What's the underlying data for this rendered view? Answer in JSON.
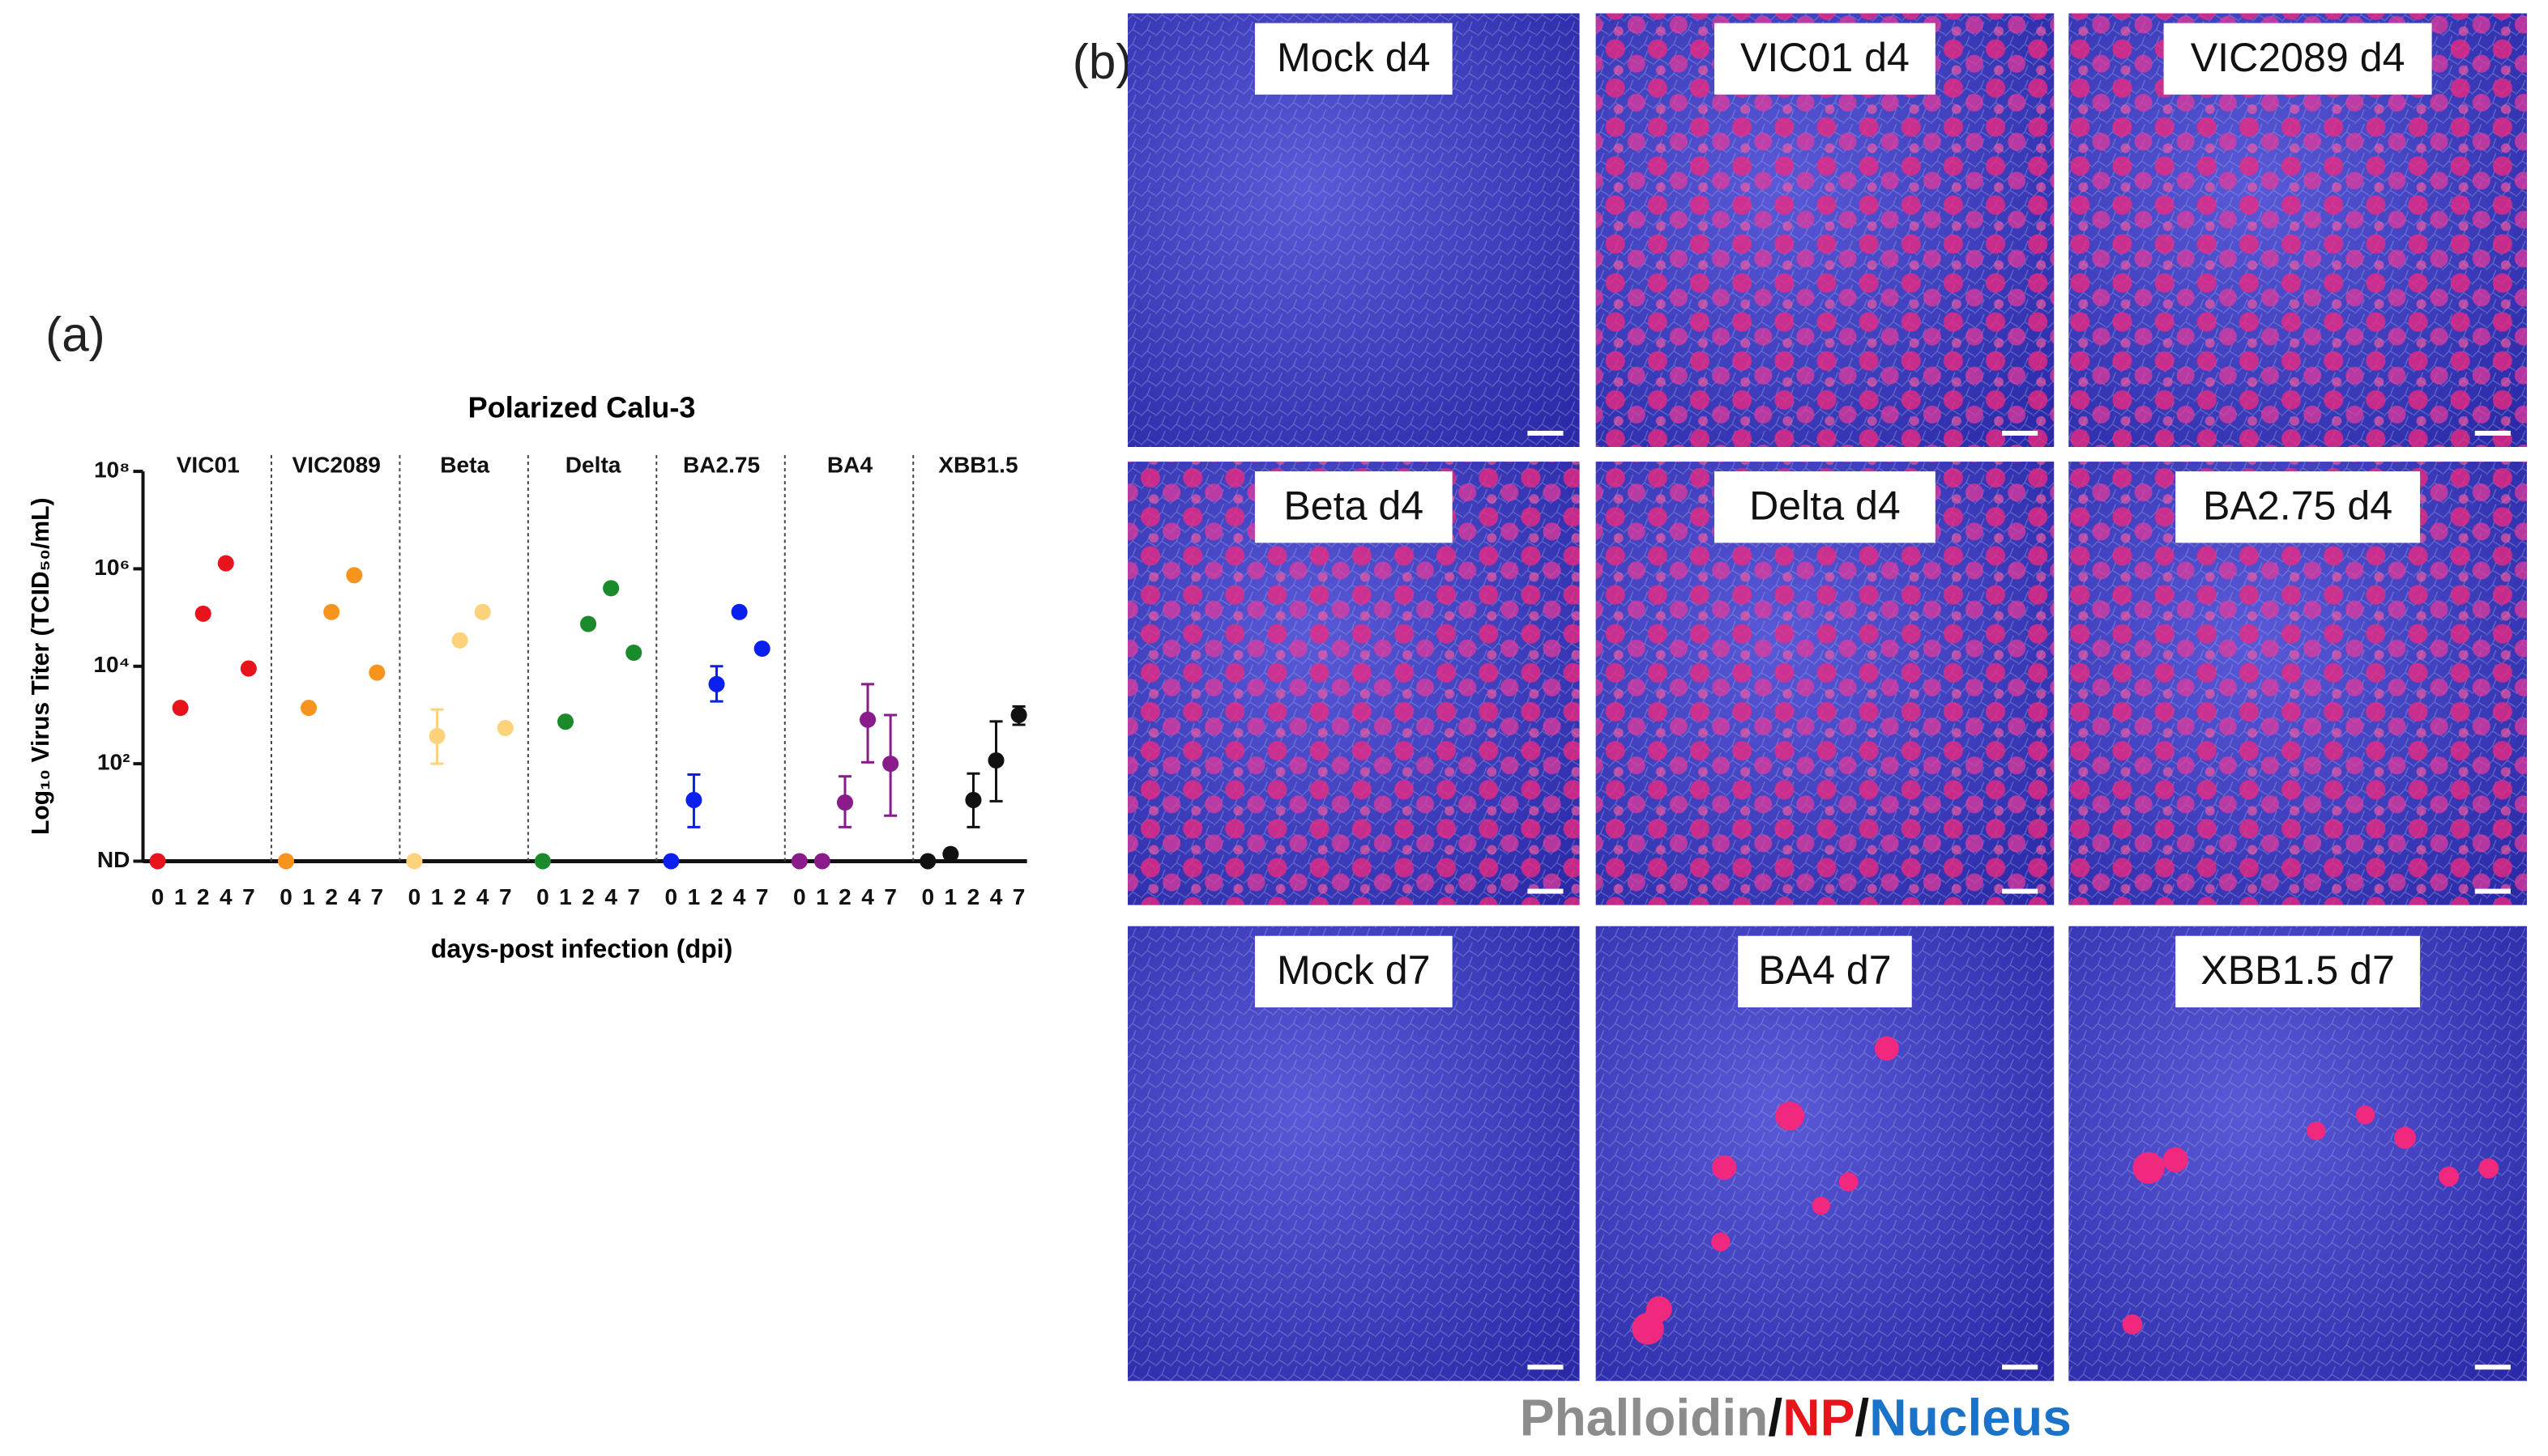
{
  "panel_labels": {
    "a": "(a)",
    "b": "(b)"
  },
  "chart_data": {
    "type": "dot",
    "title": "Polarized Calu-3",
    "y_label": "Log₁₀ Virus Titer (TCID₅₀/mL)",
    "x_label": "days-post infection (dpi)",
    "log_scale": true,
    "categories": [
      "0",
      "1",
      "2",
      "4",
      "7"
    ],
    "ylim": [
      1,
      100000000
    ],
    "yticks": [
      {
        "value": 1,
        "label": "ND"
      },
      {
        "value": 100,
        "label": "10²"
      },
      {
        "value": 10000,
        "label": "10⁴"
      },
      {
        "value": 1000000,
        "label": "10⁶"
      },
      {
        "value": 100000000,
        "label": "10⁸"
      }
    ],
    "series": [
      {
        "name": "VIC01",
        "color": "#e8141c",
        "values": [
          1,
          1400,
          120000,
          1300000,
          9000
        ],
        "lower": [
          null,
          null,
          null,
          null,
          null
        ],
        "upper": [
          null,
          null,
          null,
          null,
          null
        ]
      },
      {
        "name": "VIC2089",
        "color": "#f7941d",
        "values": [
          1,
          1400,
          130000,
          740000,
          7400
        ],
        "lower": [
          null,
          null,
          null,
          null,
          null
        ],
        "upper": [
          null,
          null,
          null,
          null,
          null
        ]
      },
      {
        "name": "Beta",
        "color": "#fcd27a",
        "values": [
          1,
          370,
          34000,
          130000,
          540
        ],
        "lower": [
          null,
          100,
          null,
          null,
          null
        ],
        "upper": [
          null,
          1300,
          null,
          null,
          null
        ]
      },
      {
        "name": "Delta",
        "color": "#1b8a2a",
        "values": [
          1,
          730,
          74000,
          400000,
          19000
        ],
        "lower": [
          null,
          null,
          null,
          null,
          null
        ],
        "upper": [
          null,
          null,
          null,
          null,
          null
        ]
      },
      {
        "name": "BA2.75",
        "color": "#0a1ff0",
        "values": [
          1,
          18,
          4300,
          130000,
          23000
        ],
        "lower": [
          null,
          5,
          1900,
          null,
          null
        ],
        "upper": [
          null,
          60,
          10000,
          null,
          null
        ]
      },
      {
        "name": "BA4",
        "color": "#8b1a8b",
        "values": [
          1,
          1,
          16,
          800,
          100
        ],
        "lower": [
          null,
          null,
          5,
          107,
          8.6
        ],
        "upper": [
          null,
          null,
          55,
          4300,
          1000
        ]
      },
      {
        "name": "XBB1.5",
        "color": "#111111",
        "values": [
          1,
          1.4,
          18,
          117,
          1000
        ],
        "lower": [
          null,
          null,
          5,
          17,
          630
        ],
        "upper": [
          null,
          null,
          63,
          740,
          1500
        ]
      }
    ]
  },
  "images": [
    {
      "label": "Mock d4"
    },
    {
      "label": "VIC01 d4"
    },
    {
      "label": "VIC2089 d4"
    },
    {
      "label": "Beta d4"
    },
    {
      "label": "Delta d4"
    },
    {
      "label": "BA2.75 d4"
    },
    {
      "label": "Mock d7"
    },
    {
      "label": "BA4 d7"
    },
    {
      "label": "XBB1.5 d7"
    }
  ],
  "stain_caption": [
    {
      "text": "Phalloidin",
      "color": "#8c8c8c"
    },
    {
      "text": "/",
      "color": "#111111"
    },
    {
      "text": "NP",
      "color": "#e8141c"
    },
    {
      "text": "/",
      "color": "#111111"
    },
    {
      "text": "Nucleus",
      "color": "#1a73c8"
    }
  ]
}
